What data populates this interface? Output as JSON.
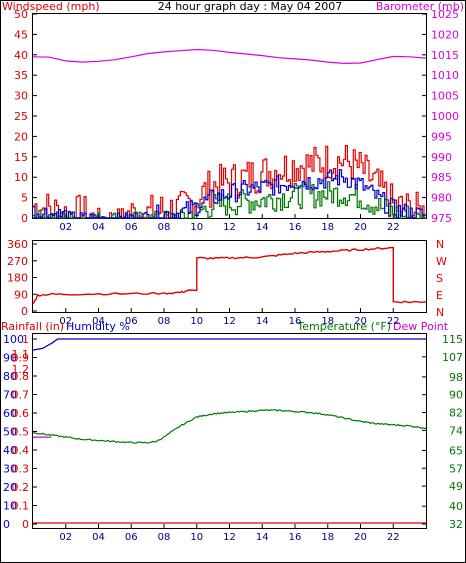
{
  "header": {
    "title": "24 hour graph day : May 04 2007",
    "left_label": "Windspeed (mph)",
    "right_label": "Barometer (mb)"
  },
  "mid_panel": {
    "dir_left_ticks": [
      "360",
      "270",
      "180",
      "90",
      "0"
    ],
    "dir_right_labels": [
      "N",
      "W",
      "S",
      "E",
      "N"
    ]
  },
  "bottom_panel": {
    "rainfall_label": "Rainfall (in)",
    "humidity_label": "Humidity %",
    "temperature_label": "Temperature (°F)",
    "dewpoint_label": "Dew Point"
  },
  "colors": {
    "wind_gust": "#e00000",
    "wind_avg": "#0000cc",
    "wind_low": "#007700",
    "barometer": "#dd00dd",
    "direction": "#dd0000",
    "humidity": "#0000cc",
    "temperature": "#007700",
    "dewpoint": "#cc00cc",
    "rainfall": "#dd0000"
  },
  "chart_data": [
    {
      "type": "line",
      "title": "24 hour graph day : May 04 2007",
      "x_ticks": [
        "02",
        "04",
        "06",
        "08",
        "10",
        "12",
        "14",
        "16",
        "18",
        "20",
        "22"
      ],
      "left_axis": {
        "label": "Windspeed (mph)",
        "ticks": [
          0,
          5,
          10,
          15,
          20,
          25,
          30,
          35,
          40,
          45,
          50
        ],
        "ylim": [
          0,
          50
        ]
      },
      "right_axis": {
        "label": "Barometer (mb)",
        "ticks": [
          975,
          980,
          985,
          990,
          995,
          1000,
          1005,
          1010,
          1015,
          1020,
          1025
        ],
        "ylim": [
          975,
          1025
        ]
      },
      "series": [
        {
          "name": "Barometer (mb)",
          "axis": "right",
          "x": [
            0,
            1,
            2,
            3,
            4,
            5,
            6,
            7,
            8,
            9,
            10,
            11,
            12,
            13,
            14,
            15,
            16,
            17,
            18,
            19,
            20,
            21,
            22,
            23,
            24
          ],
          "values": [
            1014.5,
            1014.4,
            1013.5,
            1013.2,
            1013.4,
            1013.8,
            1014.5,
            1015.3,
            1015.7,
            1016.0,
            1016.3,
            1016.1,
            1015.6,
            1015.2,
            1014.8,
            1014.3,
            1014.0,
            1013.7,
            1013.2,
            1012.9,
            1013.0,
            1013.8,
            1014.6,
            1014.5,
            1014.2
          ]
        },
        {
          "name": "gust",
          "axis": "left",
          "x": [
            0,
            1,
            2,
            3,
            4,
            5,
            6,
            7,
            8,
            9,
            10,
            11,
            12,
            13,
            14,
            15,
            16,
            17,
            18,
            19,
            20,
            21,
            22,
            23,
            24
          ],
          "values": [
            3,
            2,
            1,
            1,
            0,
            0,
            1,
            1,
            2,
            2,
            5,
            8,
            9,
            10,
            11,
            12,
            13,
            13,
            14,
            14,
            12,
            8,
            3,
            2,
            1
          ]
        },
        {
          "name": "average",
          "axis": "left",
          "x": [
            0,
            1,
            2,
            3,
            4,
            5,
            6,
            7,
            8,
            9,
            10,
            11,
            12,
            13,
            14,
            15,
            16,
            17,
            18,
            19,
            20,
            21,
            22,
            23,
            24
          ],
          "values": [
            1.5,
            1,
            0.5,
            0.3,
            0,
            0,
            0.3,
            0.5,
            1,
            1.2,
            3,
            5,
            6,
            7,
            7.5,
            8,
            9,
            9,
            9.5,
            10,
            8,
            5,
            2,
            1,
            0.5
          ]
        },
        {
          "name": "low",
          "axis": "left",
          "x": [
            0,
            1,
            2,
            3,
            4,
            5,
            6,
            7,
            8,
            9,
            10,
            11,
            12,
            13,
            14,
            15,
            16,
            17,
            18,
            19,
            20,
            21,
            22,
            23,
            24
          ],
          "values": [
            0.5,
            0.3,
            0,
            0,
            0,
            0,
            0,
            0,
            0.3,
            0.5,
            1.5,
            3,
            3.5,
            4,
            4.5,
            5,
            5.5,
            5.5,
            6,
            6,
            5,
            3,
            1,
            0.5,
            0
          ]
        }
      ]
    },
    {
      "type": "line",
      "title": "",
      "x_ticks": [
        "02",
        "04",
        "06",
        "08",
        "10",
        "12",
        "14",
        "16",
        "18",
        "20",
        "22"
      ],
      "left_axis": {
        "label": "",
        "ticks": [
          360,
          270,
          180,
          90,
          0
        ],
        "ylim": [
          0,
          360
        ]
      },
      "right_axis": {
        "label": "",
        "ticks": [
          "N",
          "W",
          "S",
          "E",
          "N"
        ]
      },
      "series": [
        {
          "name": "Wind direction",
          "axis": "left",
          "x": [
            0,
            0.3,
            1,
            2,
            4,
            6,
            8,
            9,
            9.5,
            10,
            11,
            12,
            13,
            14,
            15,
            16,
            17,
            18,
            19,
            20,
            21,
            21.9,
            22,
            23,
            24
          ],
          "values": [
            40,
            85,
            90,
            90,
            92,
            93,
            95,
            100,
            110,
            285,
            283,
            285,
            287,
            290,
            300,
            310,
            315,
            320,
            325,
            330,
            335,
            340,
            50,
            48,
            50
          ]
        }
      ]
    },
    {
      "type": "line",
      "title": "",
      "x_ticks": [
        "02",
        "04",
        "06",
        "08",
        "10",
        "12",
        "14",
        "16",
        "18",
        "20",
        "22"
      ],
      "left_axis": {
        "label": "Rainfall (in) / Humidity %",
        "rain_ticks": [
          0,
          0.1,
          0.2,
          0.3,
          0.4,
          0.5,
          0.6,
          0.7,
          0.8,
          0.9,
          1
        ],
        "humidity_ticks": [
          0,
          10,
          20,
          30,
          40,
          50,
          60,
          70,
          80,
          90,
          100
        ],
        "rain_top_ticks": [
          1,
          1.1,
          1.2
        ],
        "ylim": [
          0,
          100
        ]
      },
      "right_axis": {
        "label": "Temperature (°F)",
        "ticks": [
          32,
          40,
          49,
          57,
          65,
          74,
          82,
          90,
          98,
          107,
          115
        ],
        "ylim": [
          32,
          115
        ]
      },
      "series": [
        {
          "name": "Humidity %",
          "axis": "left",
          "x": [
            0,
            0.6,
            1.2,
            1.5,
            24
          ],
          "values": [
            94,
            95,
            98,
            100,
            100
          ]
        },
        {
          "name": "Temperature (°F)",
          "axis": "right",
          "x": [
            0,
            1,
            2,
            3,
            4,
            5,
            6,
            7,
            7.5,
            8,
            9,
            10,
            11,
            12,
            13,
            14,
            15,
            16,
            17,
            18,
            19,
            20,
            21,
            22,
            23,
            24
          ],
          "values": [
            73,
            72,
            71,
            70,
            69.5,
            69,
            68.5,
            68.5,
            69,
            71,
            76,
            80,
            81.5,
            82,
            82.5,
            83,
            83,
            82.5,
            82,
            81,
            79.5,
            78,
            77,
            76.5,
            76,
            75
          ]
        },
        {
          "name": "Dew Point",
          "axis": "right",
          "x": [
            0,
            1.1
          ],
          "values": [
            71,
            71
          ]
        },
        {
          "name": "Rainfall (in)",
          "axis": "left",
          "x": [
            0,
            24
          ],
          "values": [
            0,
            0
          ]
        }
      ]
    }
  ]
}
